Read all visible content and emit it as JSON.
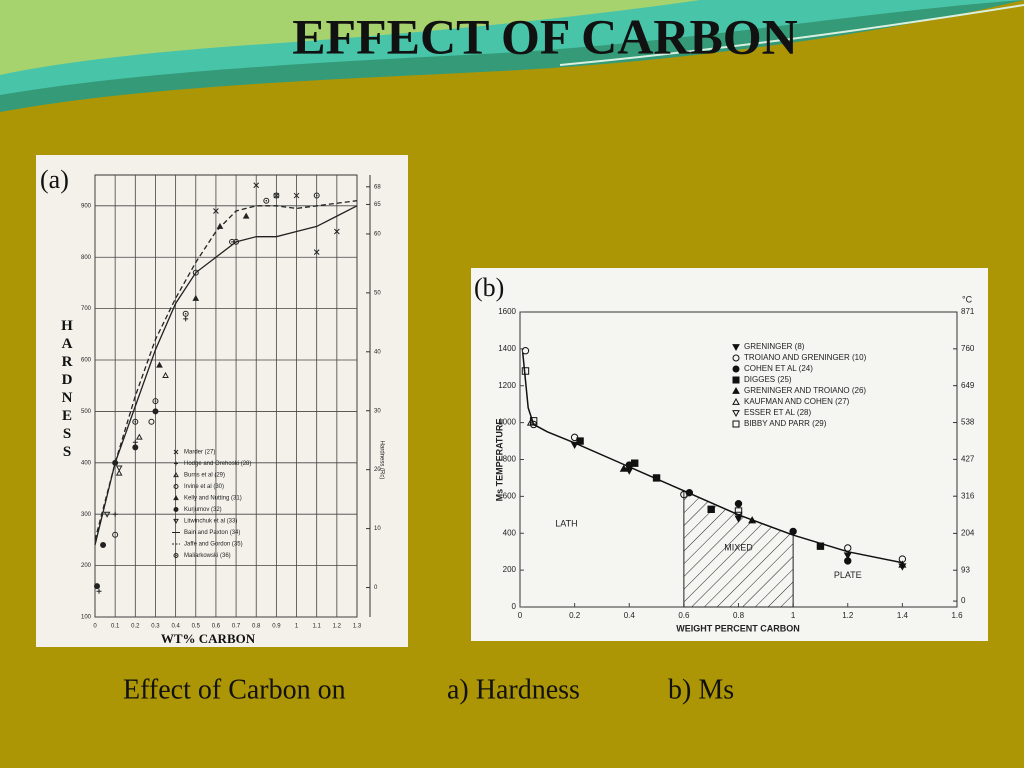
{
  "title": "EFFECT OF CARBON",
  "caption": [
    "Effect of Carbon on",
    "a) Hardness",
    "b) Ms"
  ],
  "chart_data": [
    {
      "type": "line",
      "panel_label": "(a)",
      "ylabel": "HARDNESS",
      "xlabel": "WT% CARBON",
      "y2label": "Hardness (Rc)",
      "xlim": [
        0,
        1.3
      ],
      "xticks": [
        0,
        0.1,
        0.2,
        0.3,
        0.4,
        0.5,
        0.6,
        0.7,
        0.8,
        0.9,
        1.0,
        1.1,
        1.2,
        1.3
      ],
      "ylim": [
        100,
        960
      ],
      "yticks": [
        100,
        200,
        300,
        400,
        500,
        600,
        700,
        800,
        900
      ],
      "y2lim": [
        -5,
        70
      ],
      "y2ticks": [
        0,
        10,
        20,
        30,
        40,
        50,
        60,
        65,
        68
      ],
      "grid": true,
      "series": [
        {
          "name": "Marder (27)",
          "marker": "x",
          "color": "#222",
          "x": [
            0.6,
            0.8,
            0.9,
            1.0,
            1.1,
            1.2
          ],
          "values": [
            890,
            940,
            920,
            920,
            810,
            850
          ]
        },
        {
          "name": "Hodge and Orehoski (28)",
          "marker": "plus",
          "color": "#222",
          "x": [
            0.02,
            0.1,
            0.2,
            0.45
          ],
          "values": [
            150,
            300,
            440,
            680
          ]
        },
        {
          "name": "Burns et al (29)",
          "marker": "triangle-open",
          "color": "#222",
          "x": [
            0.12,
            0.22,
            0.35
          ],
          "values": [
            380,
            450,
            570
          ]
        },
        {
          "name": "Irvine et al (30)",
          "marker": "circle-open",
          "color": "#222",
          "x": [
            0.1,
            0.28,
            0.5,
            0.7,
            0.9
          ],
          "values": [
            260,
            480,
            770,
            830,
            920
          ]
        },
        {
          "name": "Kelly and Nutting (31)",
          "marker": "triangle",
          "color": "#222",
          "x": [
            0.32,
            0.5,
            0.62,
            0.75
          ],
          "values": [
            590,
            720,
            860,
            880
          ]
        },
        {
          "name": "Kurjumov (32)",
          "marker": "dot",
          "color": "#222",
          "x": [
            0.01,
            0.04,
            0.1,
            0.2,
            0.3
          ],
          "values": [
            160,
            240,
            400,
            430,
            500
          ]
        },
        {
          "name": "Litwinchuk et al (33)",
          "marker": "triangle-down-open",
          "color": "#222",
          "x": [
            0.06,
            0.12
          ],
          "values": [
            300,
            390
          ]
        },
        {
          "name": "Bain and Paxton (34)",
          "line": "solid",
          "color": "#222",
          "x": [
            0.0,
            0.1,
            0.2,
            0.3,
            0.4,
            0.5,
            0.6,
            0.7,
            0.8,
            0.9,
            1.0,
            1.1,
            1.2,
            1.3
          ],
          "values": [
            240,
            400,
            510,
            620,
            710,
            770,
            800,
            830,
            840,
            840,
            850,
            860,
            880,
            900
          ]
        },
        {
          "name": "Jaffe and Gordon (35)",
          "line": "dashed",
          "color": "#222",
          "x": [
            0.0,
            0.1,
            0.2,
            0.3,
            0.4,
            0.5,
            0.6,
            0.7,
            0.8,
            0.9,
            1.0,
            1.1,
            1.2,
            1.3
          ],
          "values": [
            250,
            400,
            530,
            640,
            720,
            790,
            850,
            890,
            900,
            900,
            895,
            900,
            905,
            910
          ]
        },
        {
          "name": "Maliarkowski (36)",
          "marker": "circle-dot",
          "color": "#222",
          "x": [
            0.2,
            0.3,
            0.45,
            0.68,
            0.85,
            1.1
          ],
          "values": [
            480,
            520,
            690,
            830,
            910,
            920
          ]
        }
      ]
    },
    {
      "type": "scatter",
      "panel_label": "(b)",
      "ylabel": "Ms TEMPERATURE",
      "xlabel": "WEIGHT PERCENT CARBON",
      "y2label": "°C",
      "xlim": [
        0,
        1.6
      ],
      "xticks": [
        0,
        0.2,
        0.4,
        0.6,
        0.8,
        1.0,
        1.2,
        1.4,
        1.6
      ],
      "ylim": [
        0,
        1600
      ],
      "yticks": [
        0,
        200,
        400,
        600,
        800,
        1000,
        1200,
        1400,
        1600
      ],
      "y2lim": [
        -17.8,
        871
      ],
      "y2ticks": [
        0,
        93,
        204,
        316,
        427,
        538,
        649,
        760,
        871
      ],
      "grid": false,
      "regions": [
        "LATH",
        "MIXED",
        "PLATE"
      ],
      "mixed_range": [
        0.6,
        1.0
      ],
      "fit_curve": {
        "x": [
          0.01,
          0.03,
          0.05,
          0.1,
          0.2,
          0.4,
          0.6,
          0.8,
          1.0,
          1.2,
          1.4
        ],
        "values": [
          1380,
          1080,
          990,
          950,
          890,
          760,
          630,
          500,
          390,
          300,
          240
        ]
      },
      "series": [
        {
          "name": "GRENINGER (8)",
          "marker": "triangle-down",
          "color": "#111",
          "x": [
            0.2,
            0.4,
            0.8,
            1.2,
            1.4
          ],
          "values": [
            880,
            740,
            480,
            280,
            220
          ]
        },
        {
          "name": "TROIANO AND GRENINGER (10)",
          "marker": "circle-open",
          "color": "#111",
          "x": [
            0.02,
            0.05,
            0.2,
            0.6,
            1.2,
            1.4
          ],
          "values": [
            1390,
            990,
            920,
            610,
            320,
            260
          ]
        },
        {
          "name": "COHEN ET AL (24)",
          "marker": "dot",
          "color": "#111",
          "x": [
            0.4,
            0.62,
            0.8,
            1.0,
            1.2
          ],
          "values": [
            770,
            620,
            560,
            410,
            250
          ]
        },
        {
          "name": "DIGGES (25)",
          "marker": "square",
          "color": "#111",
          "x": [
            0.22,
            0.42,
            0.5,
            0.7,
            1.1
          ],
          "values": [
            900,
            780,
            700,
            530,
            330
          ]
        },
        {
          "name": "GRENINGER AND TROIANO (26)",
          "marker": "triangle",
          "color": "#111",
          "x": [
            0.38,
            0.85,
            1.4
          ],
          "values": [
            750,
            470,
            230
          ]
        },
        {
          "name": "KAUFMAN AND COHEN (27)",
          "marker": "triangle-open",
          "color": "#111",
          "x": [
            0.04
          ],
          "values": [
            1000
          ]
        },
        {
          "name": "ESSER ET AL (28)",
          "marker": "triangle-down-open",
          "color": "#111",
          "x": [
            0.8
          ],
          "values": [
            500
          ]
        },
        {
          "name": "BIBBY AND PARR (29)",
          "marker": "square-open",
          "color": "#111",
          "x": [
            0.02,
            0.05,
            0.8
          ],
          "values": [
            1280,
            1010,
            520
          ]
        }
      ]
    }
  ]
}
